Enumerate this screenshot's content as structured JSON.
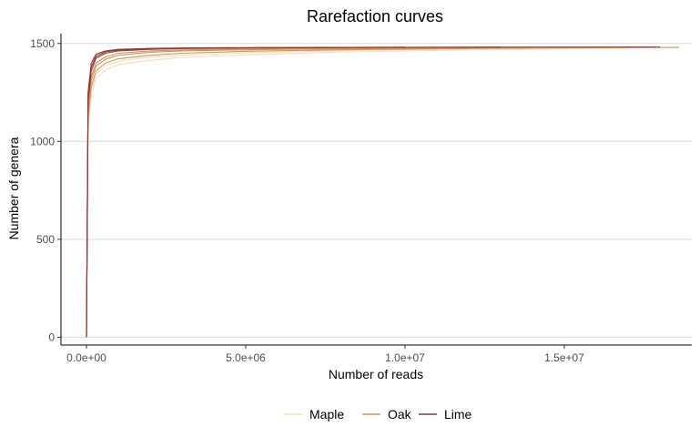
{
  "chart_data": {
    "type": "line",
    "title": "Rarefaction curves",
    "xlabel": "Number of reads",
    "ylabel": "Number of genera",
    "xlim": [
      -800000,
      19000000
    ],
    "ylim": [
      -40,
      1550
    ],
    "xticks": [
      0,
      5000000,
      10000000,
      15000000
    ],
    "xtick_labels": [
      "0.0e+00",
      "5.0e+06",
      "1.0e+07",
      "1.5e+07"
    ],
    "yticks": [
      0,
      500,
      1000,
      1500
    ],
    "ytick_labels": [
      "0",
      "500",
      "1000",
      "1500"
    ],
    "grid": "horizontal major",
    "legend_position": "bottom",
    "legend": [
      {
        "name": "Maple",
        "color": "#f5deb3"
      },
      {
        "name": "Oak",
        "color": "#d2925a"
      },
      {
        "name": "Lime",
        "color": "#8b3a3a"
      }
    ],
    "series": [
      {
        "group": "Maple",
        "color": "#f5deb3",
        "x": [
          0,
          50000,
          150000,
          300000,
          600000,
          1000000,
          2000000,
          3000000,
          5000000,
          8000000,
          12000000,
          15000000,
          17000000
        ],
        "y": [
          0,
          1050,
          1230,
          1320,
          1365,
          1392,
          1415,
          1428,
          1442,
          1456,
          1467,
          1473,
          1476
        ]
      },
      {
        "group": "Maple",
        "color": "#f5deb3",
        "x": [
          0,
          50000,
          150000,
          300000,
          600000,
          1000000,
          2000000,
          3000000,
          5000000,
          8000000,
          10000000,
          12000000
        ],
        "y": [
          0,
          1080,
          1255,
          1345,
          1385,
          1410,
          1430,
          1440,
          1452,
          1463,
          1468,
          1472
        ]
      },
      {
        "group": "Oak",
        "color": "#d2925a",
        "x": [
          0,
          50000,
          150000,
          300000,
          600000,
          1000000,
          2000000,
          3000000,
          5000000,
          8000000,
          12000000,
          16000000,
          18600000
        ],
        "y": [
          0,
          1120,
          1280,
          1360,
          1400,
          1422,
          1440,
          1450,
          1460,
          1468,
          1474,
          1478,
          1480
        ]
      },
      {
        "group": "Oak",
        "color": "#d2925a",
        "x": [
          0,
          50000,
          150000,
          300000,
          600000,
          1000000,
          2000000,
          3000000,
          5000000,
          8000000,
          11000000
        ],
        "y": [
          0,
          1150,
          1310,
          1385,
          1420,
          1440,
          1455,
          1462,
          1468,
          1473,
          1476
        ]
      },
      {
        "group": "Oak",
        "color": "#d2925a",
        "x": [
          0,
          50000,
          150000,
          300000,
          600000,
          1000000,
          2000000,
          3000000,
          5000000,
          8000000,
          14000000
        ],
        "y": [
          0,
          1170,
          1330,
          1400,
          1432,
          1450,
          1462,
          1467,
          1472,
          1476,
          1479
        ]
      },
      {
        "group": "Lime",
        "color": "#8b3a3a",
        "x": [
          0,
          50000,
          150000,
          300000,
          600000,
          1000000,
          2000000,
          3000000,
          5000000,
          8000000,
          12000000,
          18000000
        ],
        "y": [
          0,
          1200,
          1360,
          1425,
          1450,
          1462,
          1470,
          1474,
          1477,
          1479,
          1481,
          1482
        ]
      },
      {
        "group": "Lime",
        "color": "#8b3a3a",
        "x": [
          0,
          50000,
          150000,
          300000,
          600000,
          1000000,
          2000000,
          3000000,
          5000000,
          8000000,
          13000000
        ],
        "y": [
          0,
          1230,
          1380,
          1435,
          1457,
          1467,
          1473,
          1476,
          1478,
          1480,
          1481
        ]
      },
      {
        "group": "Lime",
        "color": "#8b3a3a",
        "x": [
          0,
          50000,
          150000,
          300000,
          600000,
          1000000,
          2000000,
          3000000,
          5000000,
          8000000,
          10000000
        ],
        "y": [
          0,
          1250,
          1400,
          1445,
          1462,
          1470,
          1475,
          1477,
          1479,
          1480,
          1481
        ]
      }
    ]
  }
}
